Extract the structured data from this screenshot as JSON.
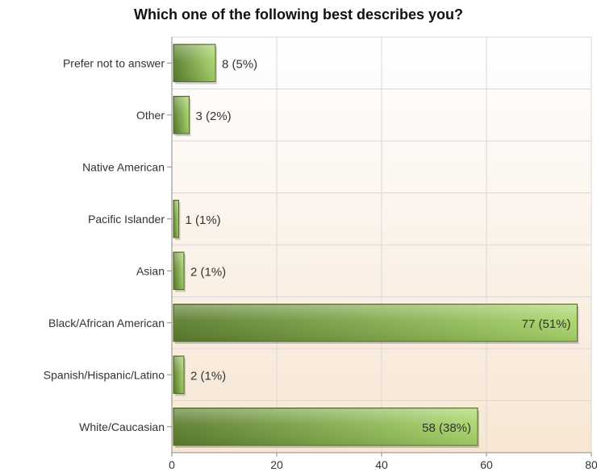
{
  "chart_data": {
    "type": "bar",
    "orientation": "horizontal",
    "title": "Which one of the following best describes you?",
    "categories": [
      "Prefer not to answer",
      "Other",
      "Native American",
      "Pacific Islander",
      "Asian",
      "Black/African American",
      "Spanish/Hispanic/Latino",
      "White/Caucasian"
    ],
    "values": [
      8,
      3,
      0,
      1,
      2,
      77,
      2,
      58
    ],
    "data_labels": [
      "8 (5%)",
      "3 (2%)",
      "",
      "1 (1%)",
      "2 (1%)",
      "77 (51%)",
      "2 (1%)",
      "58 (38%)"
    ],
    "xlim": [
      0,
      80
    ],
    "x_ticks": [
      "0",
      "20",
      "40",
      "60",
      "80"
    ],
    "grid": true,
    "colors": {
      "bar_dark": "#5a7d2e",
      "bar_light": "#a9d46a",
      "bar_border": "#4c6b26",
      "plot_bg_top": "#ffffff",
      "plot_bg_bottom": "#f7e6d3",
      "grid": "#d8d8d8"
    }
  }
}
